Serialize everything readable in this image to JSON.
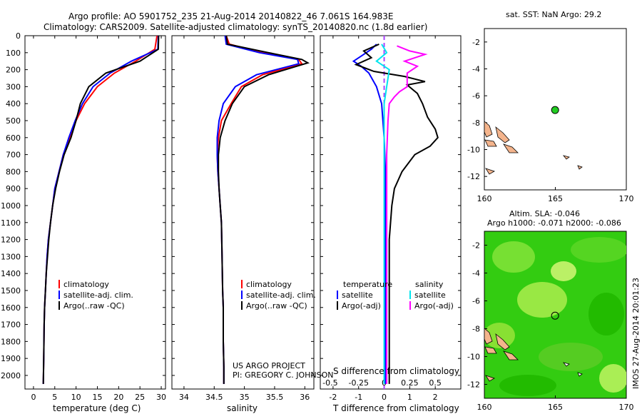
{
  "header": {
    "line1": "Argo profile: AO 5901752_235 21-Aug-2014 20140822_46 7.061S 164.983E",
    "line2": "Climatology: CARS2009. Satellite-adjusted climatology: synTS_20140820.nc (1.8d earlier)"
  },
  "credits": {
    "project": "US ARGO PROJECT",
    "pi": "PI: GREGORY C. JOHNSON",
    "stamp": "IMOS 27-Aug-2014 20:01:23"
  },
  "colors": {
    "climatology": "#ff0000",
    "satellite": "#0000ff",
    "argo": "#000000",
    "sal_satellite": "#00e5ee",
    "sal_argo": "#ff00ff",
    "land": "#f4b48c",
    "marker": "#22cc22"
  },
  "chart_data": [
    {
      "type": "line",
      "xlabel": "temperature (deg C)",
      "xlim": [
        -2,
        31
      ],
      "ylim": [
        0,
        2080
      ],
      "xticks": [
        0,
        5,
        10,
        15,
        20,
        25,
        30
      ],
      "yticks": [
        0,
        100,
        200,
        300,
        400,
        500,
        600,
        700,
        800,
        900,
        1000,
        1100,
        1200,
        1300,
        1400,
        1500,
        1600,
        1700,
        1800,
        1900,
        2000
      ],
      "legend": [
        "climatology",
        "satellite-adj. clim.",
        "Argo(..raw -QC)"
      ],
      "series": [
        {
          "name": "climatology",
          "x": [
            29,
            28.5,
            24,
            19,
            15,
            12,
            10,
            8.5,
            7,
            6,
            5,
            4.5,
            4,
            3.5,
            3.2,
            3,
            2.8,
            2.6,
            2.5,
            2.4,
            2.3
          ],
          "y": [
            0,
            80,
            150,
            220,
            300,
            400,
            500,
            600,
            700,
            800,
            900,
            1000,
            1100,
            1200,
            1300,
            1400,
            1500,
            1600,
            1700,
            1900,
            2050
          ]
        },
        {
          "name": "satellite-adj. clim.",
          "x": [
            29.3,
            29.2,
            23,
            18,
            14,
            11.5,
            9.8,
            8.3,
            7,
            6,
            5,
            4.5,
            4,
            3.5,
            3.2,
            3,
            2.8,
            2.6,
            2.5,
            2.4,
            2.3
          ],
          "y": [
            0,
            80,
            150,
            220,
            300,
            400,
            500,
            600,
            700,
            800,
            900,
            1000,
            1100,
            1200,
            1300,
            1400,
            1500,
            1600,
            1700,
            1900,
            2050
          ]
        },
        {
          "name": "Argo(..raw -QC)",
          "x": [
            29.4,
            29.3,
            25,
            17,
            13,
            11,
            10,
            8.8,
            7.2,
            6.1,
            5.2,
            4.5,
            4,
            3.6,
            3.3,
            3,
            2.8,
            2.6,
            2.5,
            2.4,
            2.3
          ],
          "y": [
            0,
            80,
            150,
            220,
            300,
            400,
            500,
            600,
            700,
            800,
            900,
            1000,
            1100,
            1200,
            1300,
            1400,
            1500,
            1600,
            1700,
            1900,
            2050
          ]
        }
      ]
    },
    {
      "type": "line",
      "xlabel": "salinity",
      "xlim": [
        33.8,
        36.15
      ],
      "ylim": [
        0,
        2080
      ],
      "xticks": [
        34,
        34.5,
        35,
        35.5,
        36
      ],
      "legend": [
        "climatology",
        "satellite-adj. clim.",
        "Argo(..raw -QC)"
      ],
      "series": [
        {
          "name": "climatology",
          "x": [
            34.7,
            34.75,
            35.3,
            35.9,
            35.95,
            35.3,
            34.95,
            34.78,
            34.62,
            34.57,
            34.55,
            34.56,
            34.58,
            34.6,
            34.62,
            34.63,
            34.64,
            34.65,
            34.65,
            34.66,
            34.66
          ],
          "y": [
            0,
            50,
            100,
            140,
            165,
            230,
            300,
            400,
            500,
            600,
            700,
            800,
            900,
            1000,
            1100,
            1300,
            1500,
            1600,
            1800,
            1950,
            2050
          ]
        },
        {
          "name": "satellite-adj. clim.",
          "x": [
            34.68,
            34.7,
            35.25,
            35.88,
            35.9,
            35.2,
            34.85,
            34.65,
            34.58,
            34.55,
            34.55,
            34.56,
            34.58,
            34.6,
            34.62,
            34.63,
            34.64,
            34.65,
            34.65,
            34.66,
            34.66
          ],
          "y": [
            0,
            50,
            100,
            140,
            165,
            230,
            300,
            400,
            500,
            600,
            700,
            800,
            900,
            1000,
            1100,
            1300,
            1500,
            1600,
            1800,
            1950,
            2050
          ]
        },
        {
          "name": "Argo(..raw -QC)",
          "x": [
            34.7,
            34.72,
            35.4,
            35.95,
            36.05,
            35.4,
            35.0,
            34.8,
            34.68,
            34.6,
            34.57,
            34.57,
            34.58,
            34.6,
            34.62,
            34.63,
            34.64,
            34.65,
            34.65,
            34.66,
            34.66
          ],
          "y": [
            0,
            50,
            100,
            140,
            160,
            230,
            300,
            400,
            500,
            600,
            700,
            800,
            900,
            1000,
            1100,
            1300,
            1500,
            1600,
            1800,
            1950,
            2050
          ]
        }
      ]
    },
    {
      "type": "line",
      "xlabel": "T difference from climatology",
      "xlabel2": "S difference from climatology",
      "xlim": [
        -2.5,
        3
      ],
      "xticks": [
        -2,
        -1,
        0,
        1,
        2
      ],
      "xticks2": [
        "-0.5",
        "-0.25",
        "0",
        "0.25",
        "0.5"
      ],
      "legend_temperature": "temperature",
      "legend_salinity": "salinity",
      "legend_items": [
        "satellite",
        "Argo(-adj)"
      ],
      "series": [
        {
          "name": "T satellite",
          "x": [
            -0.3,
            -0.5,
            -0.8,
            -1.2,
            -0.9,
            -0.6,
            -0.3,
            -0.1,
            0,
            0.05,
            0.05,
            0.05,
            0.05,
            0.05,
            0.05,
            0.05,
            0.05
          ],
          "y": [
            50,
            80,
            110,
            150,
            180,
            220,
            300,
            400,
            600,
            800,
            1000,
            1200,
            1400,
            1600,
            1800,
            2000,
            2050
          ]
        },
        {
          "name": "T Argo(-adj)",
          "x": [
            -0.2,
            -0.8,
            -0.5,
            -1.1,
            -0.4,
            0.8,
            1.6,
            0.9,
            1.3,
            1.5,
            1.7,
            2.0,
            2.1,
            1.8,
            1.2,
            0.7,
            0.4,
            0.3,
            0.2,
            0.2,
            0.2,
            0.2
          ],
          "y": [
            50,
            90,
            130,
            170,
            210,
            240,
            270,
            290,
            340,
            400,
            480,
            550,
            600,
            650,
            700,
            800,
            900,
            1000,
            1200,
            1500,
            1800,
            2050
          ]
        },
        {
          "name": "S satellite",
          "x": [
            -0.1,
            0.1,
            -0.3,
            0.2,
            0.1,
            0,
            0,
            0,
            0,
            0,
            0
          ],
          "y": [
            50,
            100,
            150,
            200,
            300,
            400,
            600,
            1000,
            1400,
            1800,
            2050
          ]
        },
        {
          "name": "S Argo(-adj)",
          "x": [
            0.5,
            1.0,
            1.6,
            0.8,
            1.3,
            0.9,
            0.9,
            0.6,
            0.4,
            0.2,
            0.15,
            0.1,
            0.1,
            0.1
          ],
          "y": [
            60,
            90,
            110,
            150,
            180,
            220,
            300,
            330,
            360,
            400,
            500,
            700,
            1200,
            2050
          ]
        }
      ]
    },
    {
      "type": "scatter",
      "title": "sat. SST: NaN Argo: 29.2",
      "xlim": [
        160,
        170
      ],
      "ylim": [
        -13,
        -1
      ],
      "xticks": [
        160,
        165,
        170
      ],
      "yticks": [
        -2,
        -4,
        -6,
        -8,
        -10,
        -12
      ],
      "points": [
        {
          "x": 164.983,
          "y": -7.061
        }
      ]
    },
    {
      "type": "heatmap",
      "title": "Altim. SLA: -0.046",
      "subtitle": "Argo h1000: -0.071 h2000: -0.086",
      "xlim": [
        160,
        170
      ],
      "ylim": [
        -13,
        -1
      ],
      "xticks": [
        160,
        165,
        170
      ],
      "yticks": [
        -2,
        -4,
        -6,
        -8,
        -10,
        -12
      ],
      "points": [
        {
          "x": 164.983,
          "y": -7.061
        }
      ]
    }
  ]
}
